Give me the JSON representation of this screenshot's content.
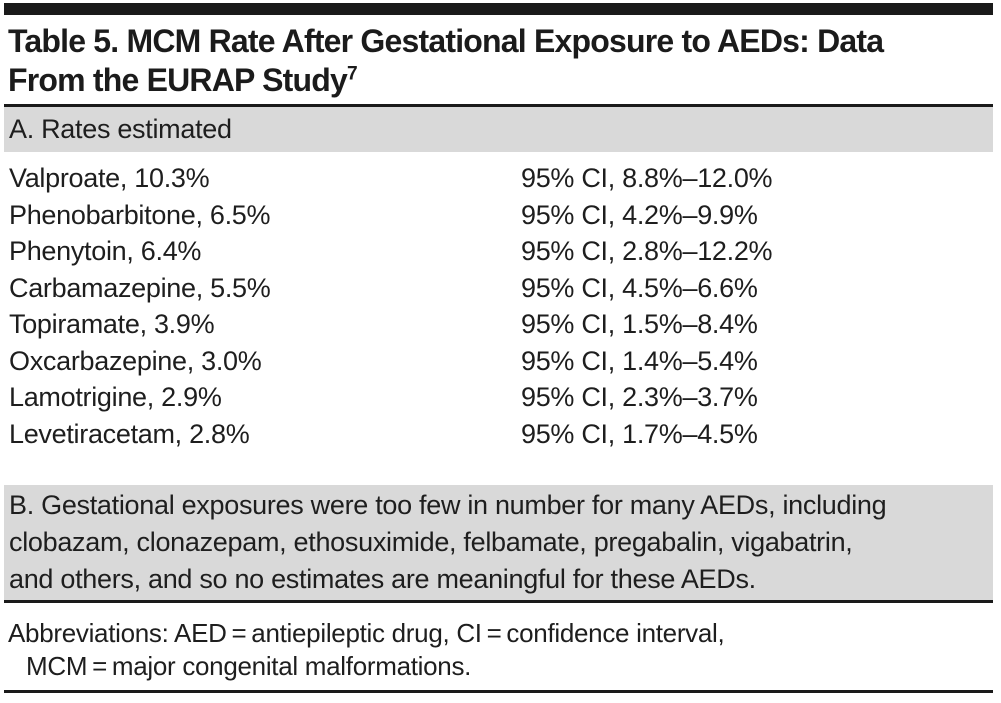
{
  "table": {
    "title": {
      "line1": "Table 5. MCM Rate After Gestational Exposure to AEDs: Data",
      "line2": "From the EURAP Study",
      "reference_mark": "7"
    },
    "section_a": {
      "header": "A. Rates estimated",
      "rows": [
        {
          "drug": "Valproate, 10.3%",
          "ci": "95% CI, 8.8%–12.0%"
        },
        {
          "drug": "Phenobarbitone, 6.5%",
          "ci": "95% CI, 4.2%–9.9%"
        },
        {
          "drug": "Phenytoin, 6.4%",
          "ci": "95% CI, 2.8%–12.2%"
        },
        {
          "drug": "Carbamazepine, 5.5%",
          "ci": "95% CI, 4.5%–6.6%"
        },
        {
          "drug": "Topiramate, 3.9%",
          "ci": "95% CI, 1.5%–8.4%"
        },
        {
          "drug": "Oxcarbazepine, 3.0%",
          "ci": "95% CI, 1.4%–5.4%"
        },
        {
          "drug": "Lamotrigine, 2.9%",
          "ci": "95% CI, 2.3%–3.7%"
        },
        {
          "drug": "Levetiracetam, 2.8%",
          "ci": "95% CI, 1.7%–4.5%"
        }
      ]
    },
    "section_b": {
      "lines": [
        "B. Gestational exposures were too few in number for many AEDs, including",
        "clobazam, clonazepam, ethosuximide, felbamate, pregabalin, vigabatrin,",
        "and others, and so no estimates are meaningful for these AEDs."
      ]
    },
    "footnote": {
      "line1": "Abbreviations: AED = antiepileptic drug, CI = confidence interval,",
      "line2": "MCM = major congenital malformations."
    },
    "colors": {
      "section_bg": "#d9d9d9",
      "rule": "#1a1a1a",
      "text": "#1e1e1e"
    }
  }
}
